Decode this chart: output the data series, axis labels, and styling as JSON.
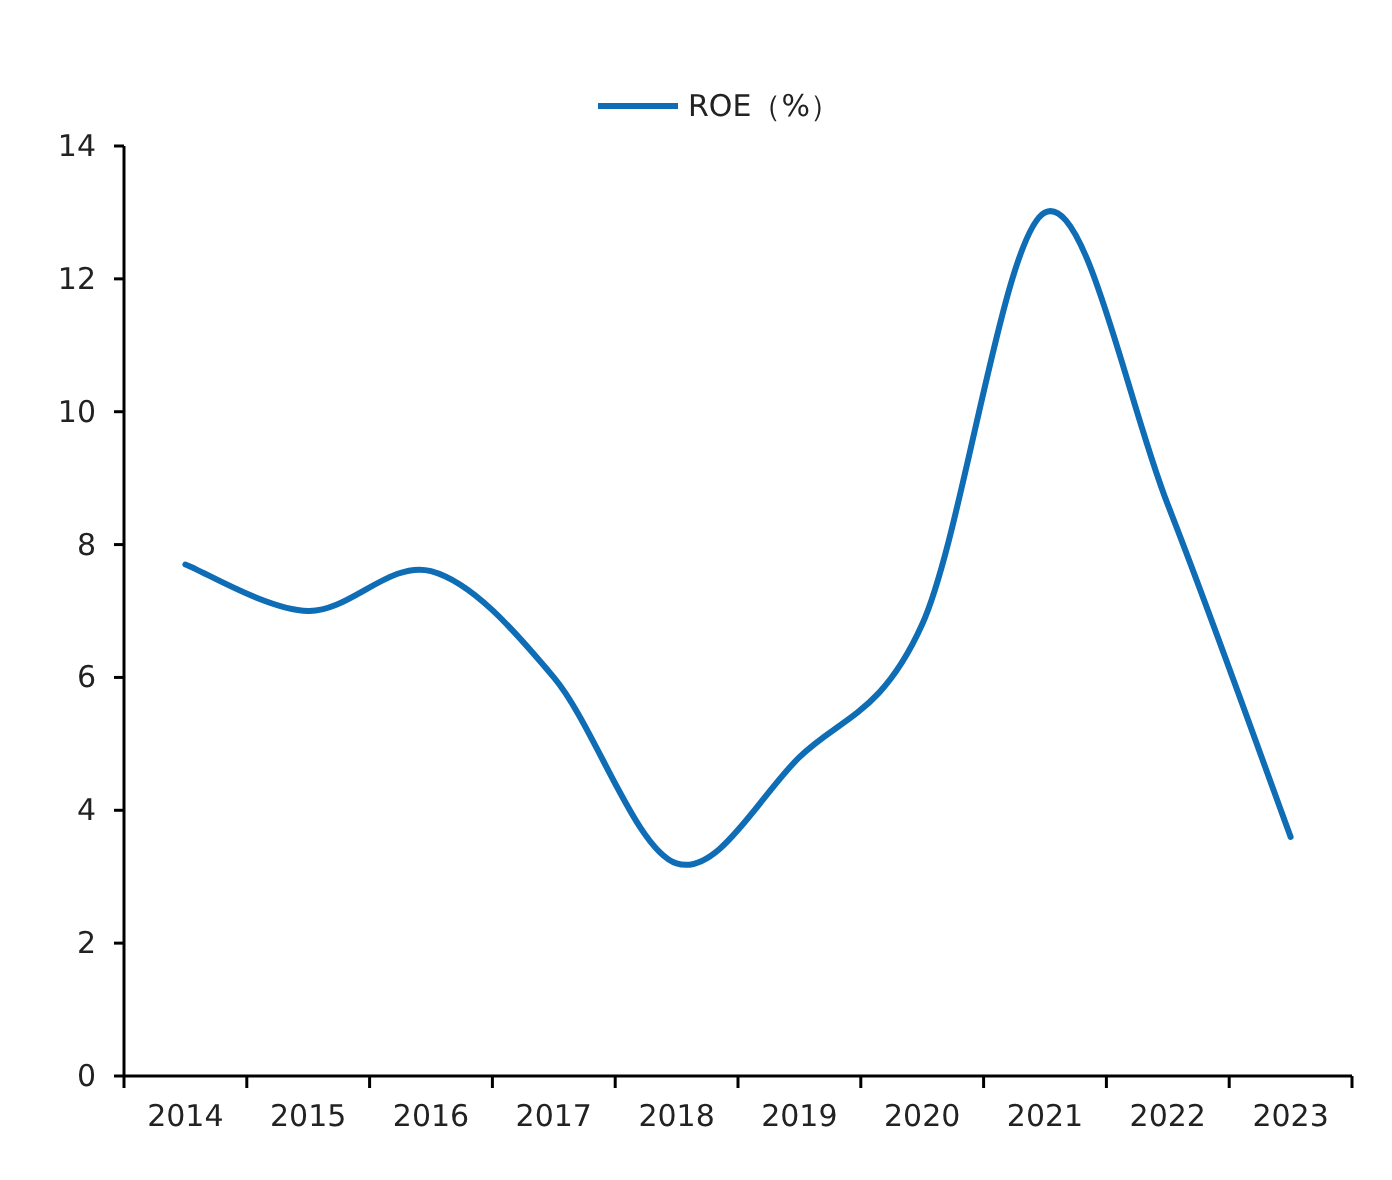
{
  "chart_data": {
    "type": "line",
    "categories": [
      "2014",
      "2015",
      "2016",
      "2017",
      "2018",
      "2019",
      "2020",
      "2021",
      "2022",
      "2023"
    ],
    "series": [
      {
        "name": "ROE（%）",
        "color": "#0f6db5",
        "values": [
          7.7,
          7.0,
          7.6,
          6.0,
          3.2,
          4.8,
          6.8,
          13.0,
          8.6,
          3.6
        ]
      }
    ],
    "ylim": [
      0,
      14
    ],
    "yticks": [
      0,
      2,
      4,
      6,
      8,
      10,
      12,
      14
    ],
    "grid": false,
    "legend": "top",
    "marker": "none",
    "line_style": "solid"
  }
}
